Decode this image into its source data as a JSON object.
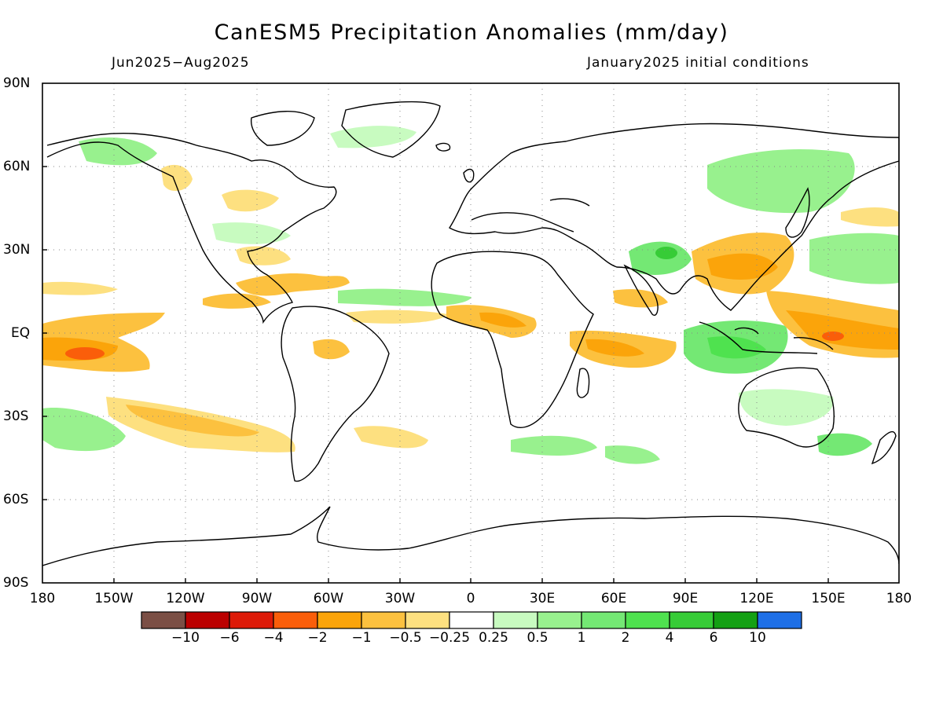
{
  "title": "CanESM5 Precipitation Anomalies (mm/day)",
  "subtitle_left": "Jun2025−Aug2025",
  "subtitle_right": "January2025 initial conditions",
  "lat_labels": [
    "90N",
    "60N",
    "30N",
    "EQ",
    "30S",
    "60S",
    "90S"
  ],
  "lon_labels": [
    "180",
    "150W",
    "120W",
    "90W",
    "60W",
    "30W",
    "0",
    "30E",
    "60E",
    "90E",
    "120E",
    "150E",
    "180"
  ],
  "colorbar": {
    "colors": [
      "#7b4f45",
      "#bb0000",
      "#dd1a08",
      "#fa5e0a",
      "#fba40a",
      "#fcc13f",
      "#fde080",
      "#ffffff",
      "#c8fbc0",
      "#98f18e",
      "#74e874",
      "#4fe24f",
      "#37cc37",
      "#14a014",
      "#1e6fe6"
    ],
    "labels": [
      "−10",
      "−6",
      "−4",
      "−2",
      "−1",
      "−0.5",
      "−0.25",
      "0.25",
      "0.5",
      "1",
      "2",
      "4",
      "6",
      "10"
    ]
  }
}
